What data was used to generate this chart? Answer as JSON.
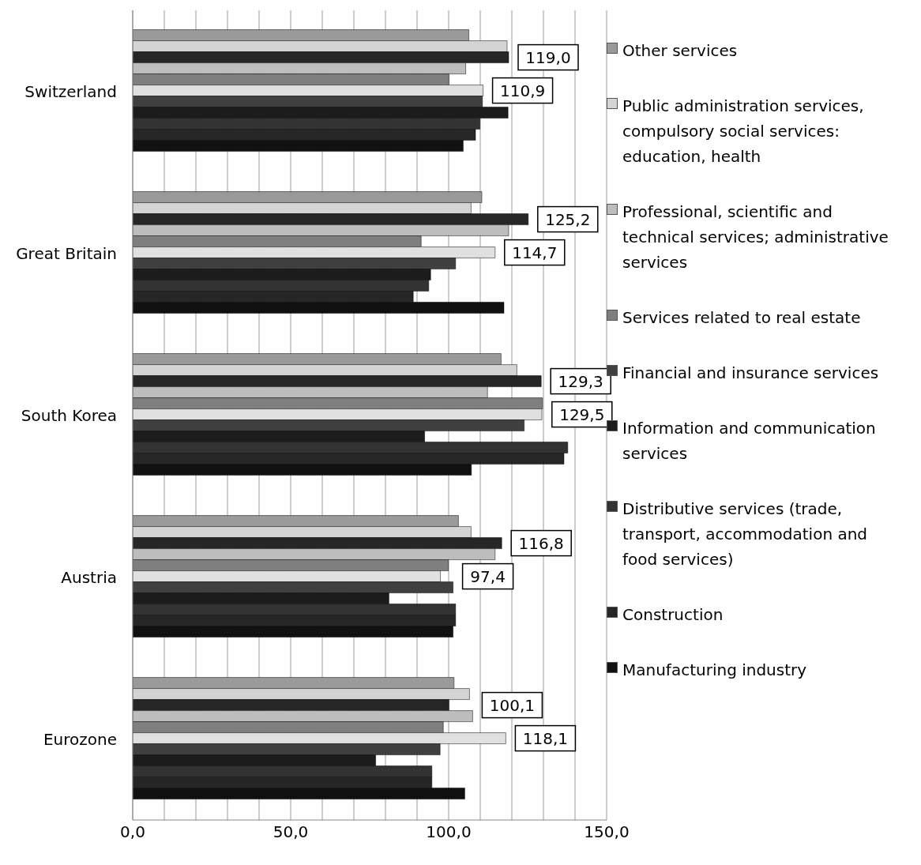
{
  "chart_data": {
    "type": "bar",
    "orientation": "horizontal",
    "categories": [
      "Switzerland",
      "Great Britain",
      "South Korea",
      "Austria",
      "Eurozone"
    ],
    "xlim": [
      0,
      150
    ],
    "xticks": [
      {
        "value": 0,
        "label": "0,0"
      },
      {
        "value": 10,
        "label": null
      },
      {
        "value": 20,
        "label": null
      },
      {
        "value": 30,
        "label": null
      },
      {
        "value": 40,
        "label": null
      },
      {
        "value": 50,
        "label": "50,0"
      },
      {
        "value": 60,
        "label": null
      },
      {
        "value": 70,
        "label": null
      },
      {
        "value": 80,
        "label": null
      },
      {
        "value": 90,
        "label": null
      },
      {
        "value": 100,
        "label": "100,0"
      },
      {
        "value": 110,
        "label": null
      },
      {
        "value": 120,
        "label": null
      },
      {
        "value": 130,
        "label": null
      },
      {
        "value": 140,
        "label": null
      },
      {
        "value": 150,
        "label": "150,0"
      }
    ],
    "grid": "x",
    "legend": "right",
    "series": [
      {
        "name": "Other services",
        "color": "#9a9a9a",
        "values": [
          106.4,
          110.5,
          116.6,
          103.1,
          101.7
        ]
      },
      {
        "name": "Public administration services, compulsory social services: education, health",
        "color": "#d4d4d4",
        "values": [
          118.5,
          107.1,
          121.6,
          107.1,
          106.6
        ]
      },
      {
        "color": "#262626",
        "values": [
          119.0,
          125.2,
          129.3,
          116.8,
          100.1
        ],
        "value_labels": [
          "119,0",
          "125,2",
          "129,3",
          "116,8",
          "100,1"
        ]
      },
      {
        "name": "Professional, scientific and technical services; administrative services",
        "color": "#bdbdbd",
        "values": [
          105.4,
          119.0,
          112.3,
          114.7,
          107.6
        ]
      },
      {
        "name": "Services related to real estate",
        "color": "#7f7f7f",
        "values": [
          100.1,
          91.3,
          129.7,
          99.9,
          98.3
        ]
      },
      {
        "color": "#e0e0e0",
        "values": [
          110.9,
          114.7,
          129.5,
          97.4,
          118.1
        ],
        "value_labels": [
          "110,9",
          "114,7",
          "129,5",
          "97,4",
          "118,1"
        ]
      },
      {
        "name": "Financial and insurance services",
        "color": "#404040",
        "values": [
          110.7,
          102.2,
          123.9,
          101.4,
          97.3
        ]
      },
      {
        "name": "Information and communication services",
        "color": "#1c1c1c",
        "values": [
          118.8,
          94.3,
          92.4,
          81.1,
          76.9
        ]
      },
      {
        "name": "Distributive services (trade, transport, accommodation and food services)",
        "color": "#333333",
        "values": [
          109.9,
          93.7,
          137.7,
          102.2,
          94.7
        ]
      },
      {
        "name": "Construction",
        "color": "#262626",
        "values": [
          108.5,
          88.8,
          136.5,
          102.2,
          94.7
        ]
      },
      {
        "name": "Manufacturing industry",
        "color": "#111111",
        "values": [
          104.6,
          117.5,
          107.2,
          101.4,
          105.1
        ]
      }
    ]
  }
}
